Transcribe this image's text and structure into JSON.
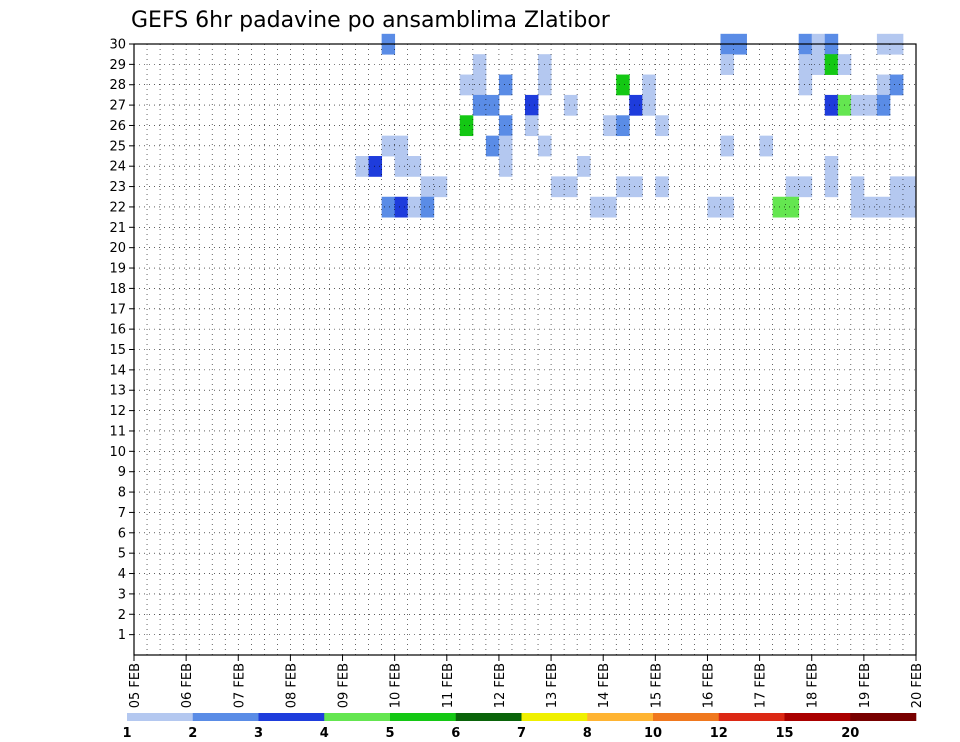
{
  "chart_data": {
    "type": "heatmap",
    "title": "GEFS 6hr padavine po ansamblima Zlatibor",
    "x_tick_labels": [
      "05 FEB",
      "06 FEB",
      "07 FEB",
      "08 FEB",
      "09 FEB",
      "10 FEB",
      "11 FEB",
      "12 FEB",
      "13 FEB",
      "14 FEB",
      "15 FEB",
      "16 FEB",
      "17 FEB",
      "18 FEB",
      "19 FEB",
      "20 FEB"
    ],
    "y_tick_labels": [
      "1",
      "2",
      "3",
      "4",
      "5",
      "6",
      "7",
      "8",
      "9",
      "10",
      "11",
      "12",
      "13",
      "14",
      "15",
      "16",
      "17",
      "18",
      "19",
      "20",
      "21",
      "22",
      "23",
      "24",
      "25",
      "26",
      "27",
      "28",
      "29",
      "30"
    ],
    "xlim_days": [
      0,
      15
    ],
    "ylim_members": [
      0,
      30
    ],
    "time_step_hours": 6,
    "grid": "dotted",
    "colorbar": {
      "levels": [
        "1",
        "2",
        "3",
        "4",
        "5",
        "6",
        "7",
        "8",
        "10",
        "12",
        "15",
        "20"
      ],
      "colors": [
        "#b4c8f0",
        "#5a8ce6",
        "#1e3cdc",
        "#64e650",
        "#14c814",
        "#0a640a",
        "#f0f000",
        "#ffb432",
        "#f0781e",
        "#dc2814",
        "#aa0000",
        "#780000"
      ]
    },
    "cells": [
      [
        30,
        19,
        2
      ],
      [
        30,
        45,
        2
      ],
      [
        30,
        46,
        2
      ],
      [
        30,
        51,
        2
      ],
      [
        30,
        52,
        1
      ],
      [
        30,
        53,
        2
      ],
      [
        30,
        57,
        1
      ],
      [
        30,
        58,
        1
      ],
      [
        29,
        26,
        1
      ],
      [
        29,
        31,
        1
      ],
      [
        29,
        45,
        1
      ],
      [
        29,
        51,
        1
      ],
      [
        29,
        52,
        1
      ],
      [
        29,
        53,
        5
      ],
      [
        29,
        54,
        1
      ],
      [
        28,
        25,
        1
      ],
      [
        28,
        26,
        1
      ],
      [
        28,
        28,
        2
      ],
      [
        28,
        31,
        1
      ],
      [
        28,
        37,
        5
      ],
      [
        28,
        39,
        1
      ],
      [
        28,
        51,
        1
      ],
      [
        28,
        57,
        1
      ],
      [
        28,
        58,
        2
      ],
      [
        27,
        26,
        2
      ],
      [
        27,
        27,
        2
      ],
      [
        27,
        30,
        3
      ],
      [
        27,
        33,
        1
      ],
      [
        27,
        38,
        3
      ],
      [
        27,
        39,
        1
      ],
      [
        27,
        53,
        3
      ],
      [
        27,
        54,
        4
      ],
      [
        27,
        55,
        1
      ],
      [
        27,
        56,
        1
      ],
      [
        27,
        57,
        2
      ],
      [
        26,
        25,
        5
      ],
      [
        26,
        28,
        2
      ],
      [
        26,
        30,
        1
      ],
      [
        26,
        36,
        1
      ],
      [
        26,
        37,
        2
      ],
      [
        26,
        40,
        1
      ],
      [
        25,
        19,
        1
      ],
      [
        25,
        20,
        1
      ],
      [
        25,
        27,
        2
      ],
      [
        25,
        28,
        1
      ],
      [
        25,
        31,
        1
      ],
      [
        25,
        45,
        1
      ],
      [
        25,
        48,
        1
      ],
      [
        24,
        17,
        1
      ],
      [
        24,
        18,
        3
      ],
      [
        24,
        20,
        1
      ],
      [
        24,
        21,
        1
      ],
      [
        24,
        28,
        1
      ],
      [
        24,
        34,
        1
      ],
      [
        24,
        53,
        1
      ],
      [
        23,
        22,
        1
      ],
      [
        23,
        23,
        1
      ],
      [
        23,
        32,
        1
      ],
      [
        23,
        33,
        1
      ],
      [
        23,
        37,
        1
      ],
      [
        23,
        38,
        1
      ],
      [
        23,
        40,
        1
      ],
      [
        23,
        50,
        1
      ],
      [
        23,
        51,
        1
      ],
      [
        23,
        53,
        1
      ],
      [
        23,
        55,
        1
      ],
      [
        23,
        58,
        1
      ],
      [
        23,
        59,
        1
      ],
      [
        22,
        19,
        2
      ],
      [
        22,
        20,
        3
      ],
      [
        22,
        21,
        1
      ],
      [
        22,
        22,
        2
      ],
      [
        22,
        35,
        1
      ],
      [
        22,
        36,
        1
      ],
      [
        22,
        44,
        1
      ],
      [
        22,
        45,
        1
      ],
      [
        22,
        49,
        4
      ],
      [
        22,
        50,
        4
      ],
      [
        22,
        55,
        1
      ],
      [
        22,
        56,
        1
      ],
      [
        22,
        57,
        1
      ],
      [
        22,
        58,
        1
      ],
      [
        22,
        59,
        1
      ]
    ]
  }
}
